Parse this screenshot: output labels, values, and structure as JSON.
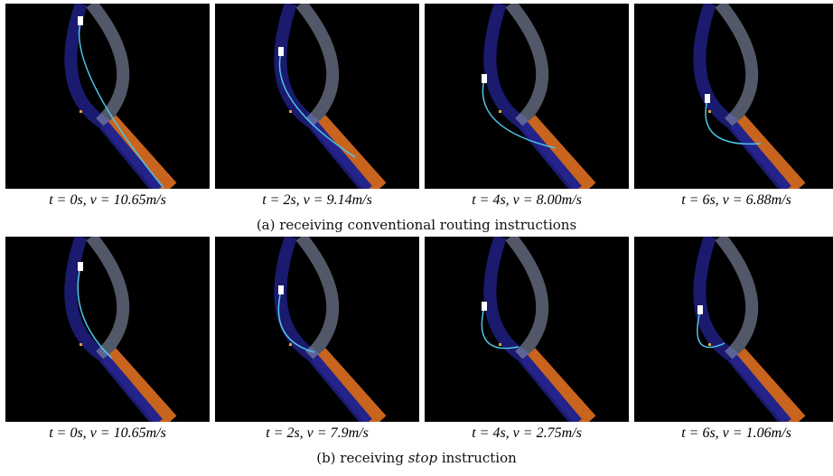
{
  "rows": [
    {
      "panels": [
        "t = 0s, v = 10.65m/s",
        "t = 2s, v = 9.14m/s",
        "t = 4s, v = 8.00m/s",
        "t = 6s, v = 6.88m/s"
      ],
      "caption": {
        "text": "(a) receiving conventional routing instructions"
      }
    },
    {
      "panels": [
        "t = 0s, v = 10.65m/s",
        "t = 2s, v = 7.9m/s",
        "t = 4s, v = 2.75m/s",
        "t = 6s, v = 1.06m/s"
      ],
      "caption": {
        "prefix": "(b) receiving ",
        "emphasis": "stop",
        "suffix": " instruction"
      }
    }
  ]
}
